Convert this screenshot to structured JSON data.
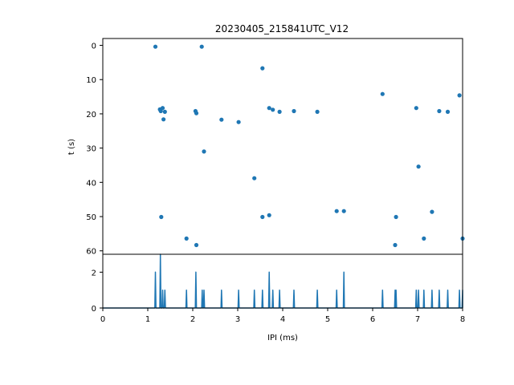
{
  "colors": {
    "series": "#1f77b4",
    "axes": "#000000",
    "background": "#ffffff"
  },
  "chart_data": [
    {
      "type": "scatter",
      "title": "20230405_215841UTC_V12",
      "xlabel": "",
      "ylabel": "t (s)",
      "xlim": [
        0,
        8
      ],
      "ylim": [
        61,
        -2
      ],
      "y_inverted": true,
      "y_ticks": [
        "0",
        "10",
        "20",
        "30",
        "40",
        "50",
        "60"
      ],
      "x_ticklabels_shown": false,
      "grid": false,
      "points": [
        {
          "x": 1.17,
          "y": 0.4
        },
        {
          "x": 2.2,
          "y": 0.4
        },
        {
          "x": 3.55,
          "y": 6.7
        },
        {
          "x": 6.22,
          "y": 14.2
        },
        {
          "x": 7.93,
          "y": 14.6
        },
        {
          "x": 1.33,
          "y": 18.3
        },
        {
          "x": 1.27,
          "y": 18.7
        },
        {
          "x": 1.29,
          "y": 19.2
        },
        {
          "x": 1.38,
          "y": 19.4
        },
        {
          "x": 2.06,
          "y": 19.2
        },
        {
          "x": 2.08,
          "y": 19.8
        },
        {
          "x": 3.7,
          "y": 18.3
        },
        {
          "x": 3.78,
          "y": 18.8
        },
        {
          "x": 3.93,
          "y": 19.4
        },
        {
          "x": 4.25,
          "y": 19.2
        },
        {
          "x": 4.77,
          "y": 19.4
        },
        {
          "x": 6.97,
          "y": 18.3
        },
        {
          "x": 7.48,
          "y": 19.2
        },
        {
          "x": 7.67,
          "y": 19.4
        },
        {
          "x": 1.35,
          "y": 21.6
        },
        {
          "x": 2.64,
          "y": 21.7
        },
        {
          "x": 3.02,
          "y": 22.4
        },
        {
          "x": 2.25,
          "y": 31.0
        },
        {
          "x": 7.02,
          "y": 35.4
        },
        {
          "x": 3.37,
          "y": 38.8
        },
        {
          "x": 5.2,
          "y": 48.4
        },
        {
          "x": 5.36,
          "y": 48.4
        },
        {
          "x": 7.32,
          "y": 48.6
        },
        {
          "x": 3.7,
          "y": 49.6
        },
        {
          "x": 3.55,
          "y": 50.1
        },
        {
          "x": 6.52,
          "y": 50.1
        },
        {
          "x": 1.3,
          "y": 50.1
        },
        {
          "x": 1.86,
          "y": 56.4
        },
        {
          "x": 7.14,
          "y": 56.4
        },
        {
          "x": 8.0,
          "y": 56.4
        },
        {
          "x": 2.08,
          "y": 58.3
        },
        {
          "x": 6.5,
          "y": 58.3
        }
      ]
    },
    {
      "type": "line",
      "title": "",
      "xlabel": "IPI (ms)",
      "ylabel": "",
      "xlim": [
        0,
        8
      ],
      "ylim": [
        0,
        3.0
      ],
      "x_ticks": [
        "0",
        "1",
        "2",
        "3",
        "4",
        "5",
        "6",
        "7",
        "8"
      ],
      "y_ticks": [
        "0",
        "2"
      ],
      "grid": false,
      "description": "histogram of IPI values drawn as a line with narrow peaks",
      "peaks": [
        {
          "x": 1.17,
          "y": 2
        },
        {
          "x": 1.28,
          "y": 3
        },
        {
          "x": 1.33,
          "y": 1
        },
        {
          "x": 1.38,
          "y": 1
        },
        {
          "x": 1.86,
          "y": 1
        },
        {
          "x": 2.07,
          "y": 2
        },
        {
          "x": 2.21,
          "y": 1
        },
        {
          "x": 2.25,
          "y": 1
        },
        {
          "x": 2.64,
          "y": 1
        },
        {
          "x": 3.02,
          "y": 1
        },
        {
          "x": 3.37,
          "y": 1
        },
        {
          "x": 3.55,
          "y": 1
        },
        {
          "x": 3.7,
          "y": 2
        },
        {
          "x": 3.78,
          "y": 1
        },
        {
          "x": 3.93,
          "y": 1
        },
        {
          "x": 4.25,
          "y": 1
        },
        {
          "x": 4.77,
          "y": 1
        },
        {
          "x": 5.2,
          "y": 1
        },
        {
          "x": 5.36,
          "y": 2
        },
        {
          "x": 6.22,
          "y": 1
        },
        {
          "x": 6.5,
          "y": 1
        },
        {
          "x": 6.52,
          "y": 1
        },
        {
          "x": 6.97,
          "y": 1
        },
        {
          "x": 7.02,
          "y": 1
        },
        {
          "x": 7.14,
          "y": 1
        },
        {
          "x": 7.32,
          "y": 1
        },
        {
          "x": 7.48,
          "y": 1
        },
        {
          "x": 7.67,
          "y": 1
        },
        {
          "x": 7.93,
          "y": 1
        },
        {
          "x": 8.0,
          "y": 1
        }
      ]
    }
  ]
}
